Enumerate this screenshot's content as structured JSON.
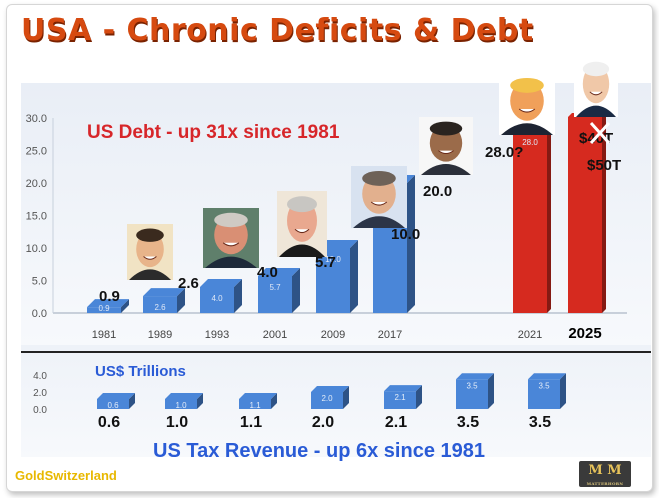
{
  "title": "USA - Chronic Deficits & Debt",
  "colors": {
    "title": "#d64a10",
    "debt_bar": "#4a86d8",
    "recent_bar": "#d62a1f",
    "debt_annotation": "#d7262a",
    "tax_annotation": "#2a5bd6",
    "brand": "#e8b800"
  },
  "chart_data": [
    {
      "type": "bar",
      "title": "US Debt  - up 31x since 1981",
      "categories": [
        "1981",
        "1989",
        "1993",
        "2001",
        "2009",
        "2017",
        "2021",
        "2025"
      ],
      "values": [
        0.9,
        2.6,
        4.0,
        5.7,
        10.0,
        20.0,
        28.0,
        50.0
      ],
      "value_labels": [
        "0.9",
        "2.6",
        "4.0",
        "5.7",
        "10.0",
        "20.0",
        "28.0?",
        "$50T"
      ],
      "bar_inner_labels": [
        "0.9",
        "2.6",
        "4.0",
        "5.7",
        "10.0",
        "20.0",
        "28.0",
        ""
      ],
      "crossed_label": "$40T",
      "ylim": [
        0,
        30
      ],
      "yticks": [
        "0.0",
        "5.0",
        "10.0",
        "15.0",
        "20.0",
        "25.0",
        "30.0"
      ],
      "grid": false,
      "portraits": [
        "portrait-1981",
        "portrait-1989",
        "portrait-1993",
        "portrait-2001",
        "portrait-2009",
        "portrait-2017",
        "portrait-2025"
      ]
    },
    {
      "type": "bar",
      "title": "US Tax Revenue  - up 6x since 1981",
      "units_label": "US$ Trillions",
      "categories": [
        "1981",
        "1989",
        "1993",
        "2001",
        "2009",
        "2017",
        "2021"
      ],
      "values": [
        0.6,
        1.0,
        1.1,
        2.0,
        2.1,
        3.5,
        3.5
      ],
      "value_labels": [
        "0.6",
        "1.0",
        "1.1",
        "2.0",
        "2.1",
        "3.5",
        "3.5"
      ],
      "ylim": [
        0,
        4
      ],
      "yticks": [
        "0.0",
        "2.0",
        "4.0"
      ]
    }
  ],
  "footer": {
    "brand": "GoldSwitzerland",
    "logo_text": "M M",
    "logo_subtext": "MATTERHORN"
  }
}
